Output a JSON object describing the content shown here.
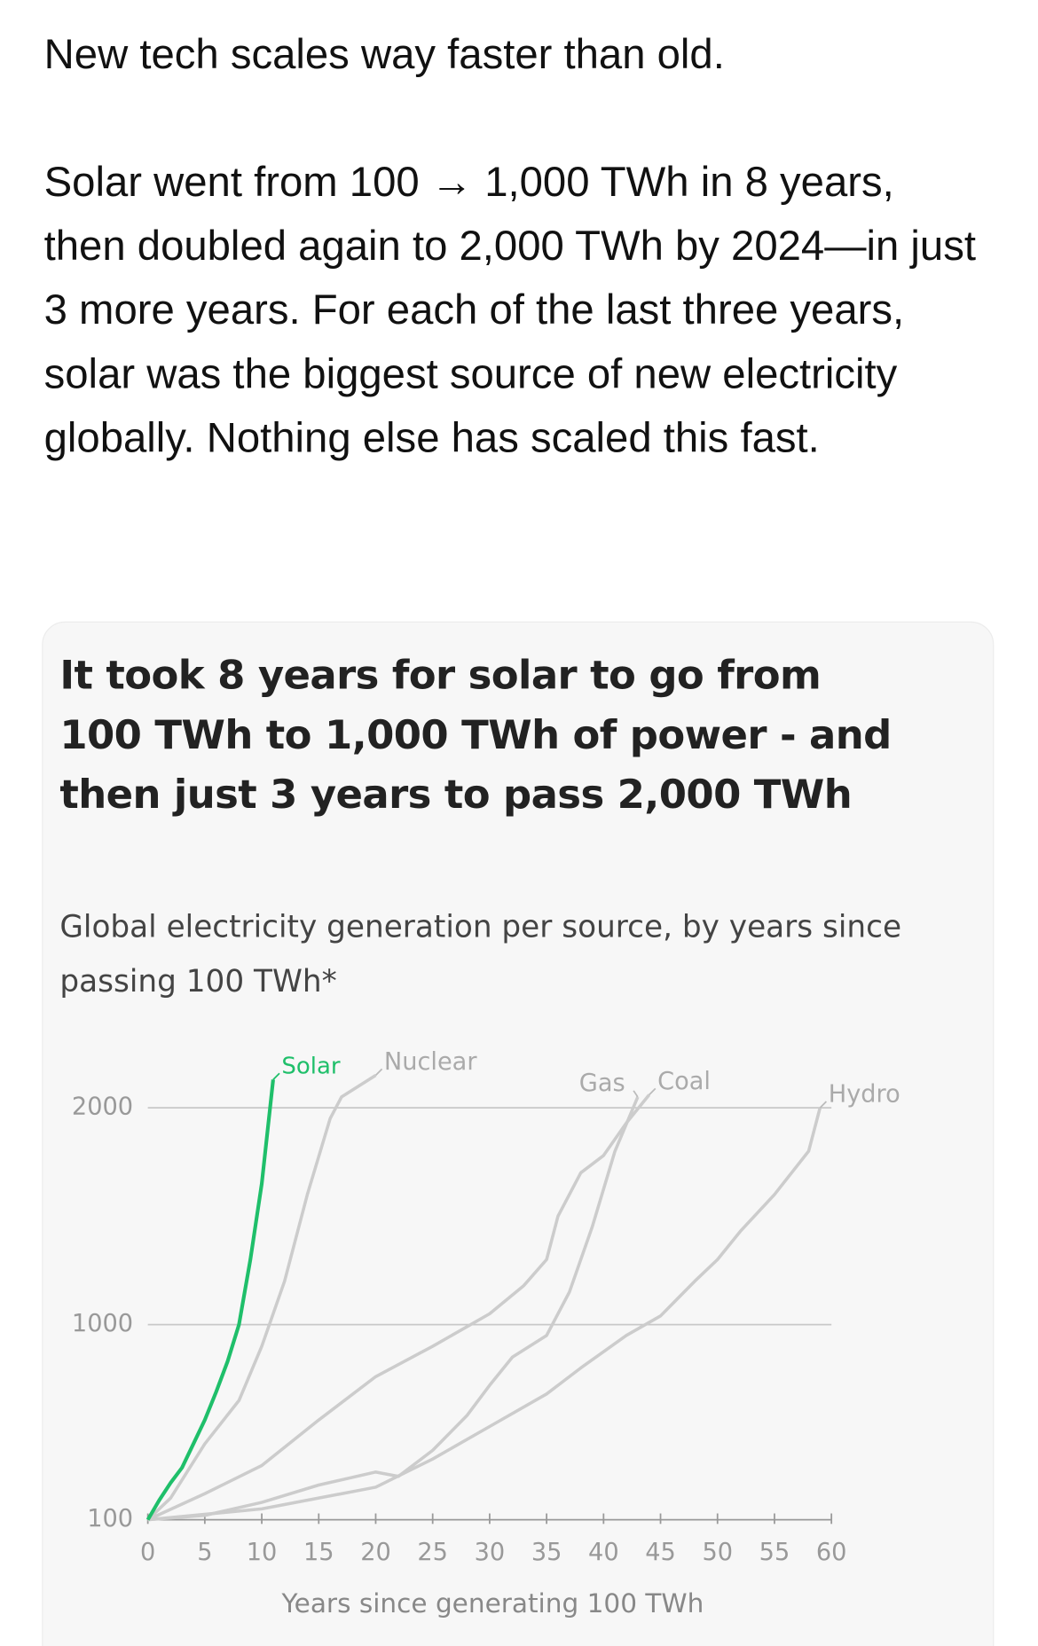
{
  "post": {
    "lines": [
      "New tech scales way faster than old.",
      "Solar went from 100 → 1,000 TWh in 8 years, then doubled again to 2,000 TWh by 2024—in just 3 more years. For each of the last three years, solar was the biggest source of new electricity globally. Nothing else has scaled this fast."
    ]
  },
  "chart_data": {
    "type": "line",
    "title": "It took 8 years for solar to go from 100 TWh to 1,000 TWh of power - and then just 3 years to pass 2,000 TWh",
    "subtitle": "Global electricity generation per source, by years since passing 100 TWh*",
    "x_label": "Years since generating 100 TWh",
    "xlim": [
      0,
      60
    ],
    "xticks": [
      0,
      5,
      10,
      15,
      20,
      25,
      30,
      35,
      40,
      45,
      50,
      55,
      60
    ],
    "ylim": [
      100,
      2200
    ],
    "yticks": [
      100,
      1000,
      2000
    ],
    "grid": true,
    "series": [
      {
        "name": "Solar",
        "color": "#1fbf6a",
        "x": [
          0,
          1,
          2,
          3,
          4,
          5,
          6,
          7,
          8,
          9,
          10,
          11
        ],
        "values": [
          100,
          190,
          270,
          340,
          450,
          560,
          690,
          830,
          1000,
          1300,
          1650,
          2130
        ]
      },
      {
        "name": "Nuclear",
        "color": "#cccccc",
        "x": [
          0,
          2,
          5,
          8,
          10,
          12,
          14,
          16,
          17,
          20
        ],
        "values": [
          100,
          200,
          450,
          650,
          900,
          1200,
          1600,
          1950,
          2050,
          2150
        ]
      },
      {
        "name": "Gas",
        "color": "#cccccc",
        "x": [
          0,
          5,
          10,
          15,
          20,
          22,
          25,
          28,
          30,
          32,
          35,
          37,
          39,
          41,
          43
        ],
        "values": [
          100,
          120,
          180,
          260,
          320,
          300,
          420,
          580,
          720,
          850,
          950,
          1150,
          1450,
          1800,
          2050
        ]
      },
      {
        "name": "Coal",
        "color": "#cccccc",
        "x": [
          0,
          5,
          10,
          15,
          20,
          25,
          30,
          33,
          35,
          36,
          38,
          40,
          42,
          44
        ],
        "values": [
          100,
          220,
          350,
          560,
          760,
          900,
          1050,
          1180,
          1300,
          1500,
          1700,
          1780,
          1930,
          2060
        ]
      },
      {
        "name": "Hydro",
        "color": "#cccccc",
        "x": [
          0,
          10,
          20,
          25,
          30,
          35,
          38,
          42,
          45,
          48,
          50,
          52,
          55,
          58,
          59
        ],
        "values": [
          100,
          150,
          250,
          380,
          530,
          680,
          800,
          950,
          1040,
          1200,
          1300,
          1430,
          1600,
          1800,
          2000
        ]
      }
    ]
  }
}
